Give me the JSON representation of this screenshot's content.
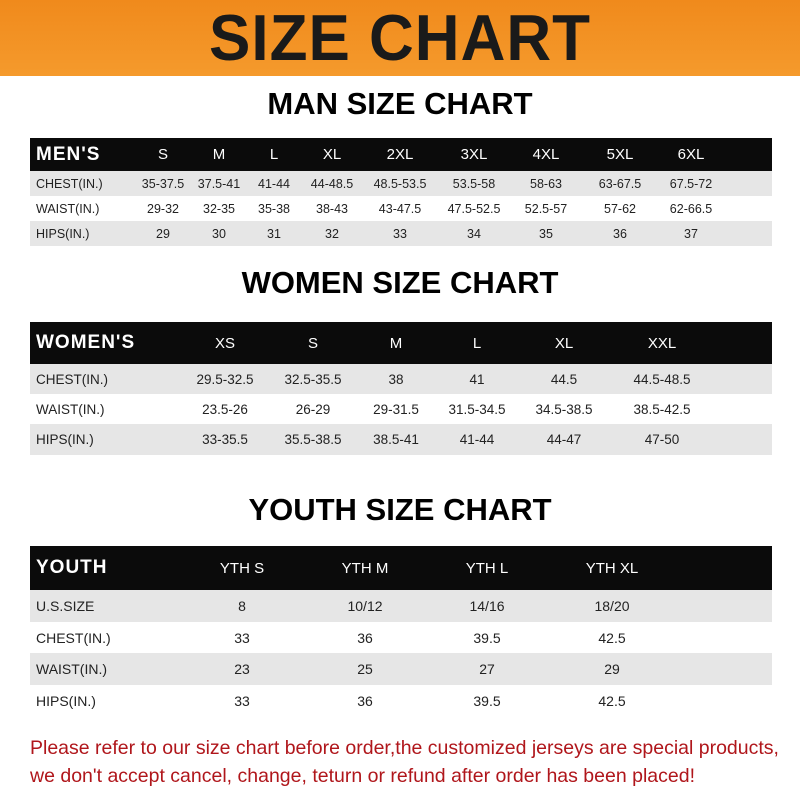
{
  "title": "SIZE CHART",
  "men": {
    "heading": "MAN SIZE CHART",
    "label": "MEN'S",
    "sizes": [
      "S",
      "M",
      "L",
      "XL",
      "2XL",
      "3XL",
      "4XL",
      "5XL",
      "6XL"
    ],
    "rows": [
      {
        "label": "CHEST(IN.)",
        "values": [
          "35-37.5",
          "37.5-41",
          "41-44",
          "44-48.5",
          "48.5-53.5",
          "53.5-58",
          "58-63",
          "63-67.5",
          "67.5-72"
        ]
      },
      {
        "label": "WAIST(IN.)",
        "values": [
          "29-32",
          "32-35",
          "35-38",
          "38-43",
          "43-47.5",
          "47.5-52.5",
          "52.5-57",
          "57-62",
          "62-66.5"
        ]
      },
      {
        "label": "HIPS(IN.)",
        "values": [
          "29",
          "30",
          "31",
          "32",
          "33",
          "34",
          "35",
          "36",
          "37"
        ]
      }
    ]
  },
  "women": {
    "heading": "WOMEN SIZE CHART",
    "label": "WOMEN'S",
    "sizes": [
      "XS",
      "S",
      "M",
      "L",
      "XL",
      "XXL"
    ],
    "rows": [
      {
        "label": "CHEST(IN.)",
        "values": [
          "29.5-32.5",
          "32.5-35.5",
          "38",
          "41",
          "44.5",
          "44.5-48.5"
        ]
      },
      {
        "label": "WAIST(IN.)",
        "values": [
          "23.5-26",
          "26-29",
          "29-31.5",
          "31.5-34.5",
          "34.5-38.5",
          "38.5-42.5"
        ]
      },
      {
        "label": "HIPS(IN.)",
        "values": [
          "33-35.5",
          "35.5-38.5",
          "38.5-41",
          "41-44",
          "44-47",
          "47-50"
        ]
      }
    ]
  },
  "youth": {
    "heading": "YOUTH SIZE CHART",
    "label": "YOUTH",
    "sizes": [
      "YTH S",
      "YTH M",
      "YTH L",
      "YTH XL"
    ],
    "rows": [
      {
        "label": "U.S.SIZE",
        "values": [
          "8",
          "10/12",
          "14/16",
          "18/20"
        ]
      },
      {
        "label": "CHEST(IN.)",
        "values": [
          "33",
          "36",
          "39.5",
          "42.5"
        ]
      },
      {
        "label": "WAIST(IN.)",
        "values": [
          "23",
          "25",
          "27",
          "29"
        ]
      },
      {
        "label": "HIPS(IN.)",
        "values": [
          "33",
          "36",
          "39.5",
          "42.5"
        ]
      }
    ]
  },
  "notice": [
    "Please refer to our size chart before order,the customized jerseys are special products,",
    "we don't accept cancel, change, teturn or refund after order has been placed!"
  ],
  "colors": {
    "banner": "#f08a1c",
    "header_row": "#0b0b0b",
    "stripe": "#e6e6e6",
    "notice": "#b0161b"
  }
}
